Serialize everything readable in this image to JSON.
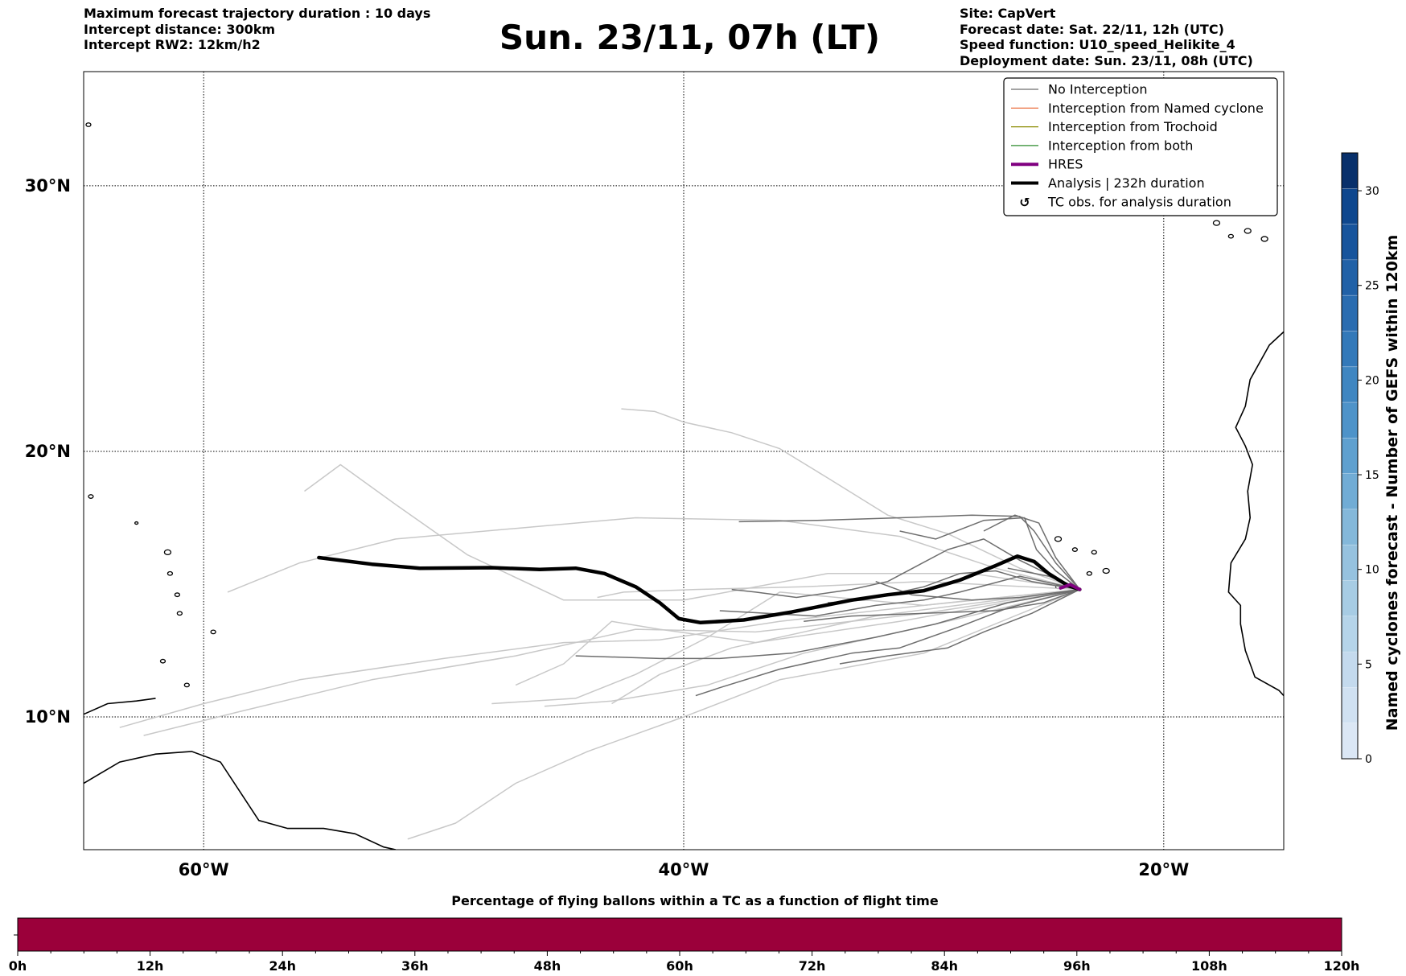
{
  "header_left": {
    "line1": "Maximum forecast trajectory duration : 10 days",
    "line2": "Intercept distance: 300km",
    "line3": "Intercept RW2: 12km/h2"
  },
  "title": "Sun. 23/11, 07h (LT)",
  "header_right": {
    "line1": "Site: CapVert",
    "line2": "Forecast date: Sat. 22/11, 12h (UTC)",
    "line3": "Speed function: U10_speed_Helikite_4",
    "line4": "Deployment date: Sun. 23/11, 08h (UTC)"
  },
  "map": {
    "lon_range": [
      -65,
      -15
    ],
    "lat_range": [
      5,
      34.3
    ],
    "lat_ticks": [
      {
        "value": 30,
        "label": "30°N"
      },
      {
        "value": 20,
        "label": "20°N"
      },
      {
        "value": 10,
        "label": "10°N"
      }
    ],
    "lon_ticks": [
      {
        "value": -60,
        "label": "60°W"
      },
      {
        "value": -40,
        "label": "40°W"
      },
      {
        "value": -20,
        "label": "20°W"
      }
    ],
    "trajectory_colors": {
      "no_interception_light": "#c8c8c8",
      "no_interception_dark": "#6e6e6e",
      "analysis": "#000000",
      "hres": "#800080"
    },
    "analysis_track": [
      [
        -55.2,
        16
      ],
      [
        -53,
        15.75
      ],
      [
        -51,
        15.6
      ],
      [
        -48,
        15.62
      ],
      [
        -46,
        15.55
      ],
      [
        -44.5,
        15.6
      ],
      [
        -43.3,
        15.4
      ],
      [
        -42,
        14.9
      ],
      [
        -41,
        14.3
      ],
      [
        -40.2,
        13.7
      ],
      [
        -39.3,
        13.55
      ],
      [
        -37.5,
        13.65
      ],
      [
        -35.5,
        13.95
      ],
      [
        -33,
        14.4
      ],
      [
        -31.5,
        14.6
      ],
      [
        -30,
        14.75
      ],
      [
        -28.5,
        15.15
      ],
      [
        -27,
        15.7
      ],
      [
        -26.1,
        16.05
      ],
      [
        -25.4,
        15.85
      ],
      [
        -24.8,
        15.4
      ],
      [
        -24,
        14.95
      ],
      [
        -23.5,
        14.8
      ]
    ],
    "hres_track": [
      [
        -24.3,
        14.85
      ],
      [
        -23.9,
        14.98
      ],
      [
        -23.5,
        14.8
      ]
    ],
    "light_tracks": [
      [
        [
          -23.5,
          14.8
        ],
        [
          -26,
          15.6
        ],
        [
          -29,
          16.9
        ],
        [
          -31.5,
          17.6
        ],
        [
          -34,
          19
        ],
        [
          -36,
          20.1
        ],
        [
          -38,
          20.7
        ],
        [
          -40,
          21.1
        ],
        [
          -41.2,
          21.5
        ],
        [
          -42.6,
          21.6
        ]
      ],
      [
        [
          -23.5,
          14.8
        ],
        [
          -27,
          15.6
        ],
        [
          -31,
          16.8
        ],
        [
          -36,
          17.4
        ],
        [
          -42,
          17.5
        ],
        [
          -47,
          17.1
        ],
        [
          -52,
          16.7
        ],
        [
          -56,
          15.8
        ],
        [
          -59,
          14.7
        ]
      ],
      [
        [
          -23.5,
          14.8
        ],
        [
          -28,
          15.4
        ],
        [
          -34,
          15.4
        ],
        [
          -40,
          14.4
        ],
        [
          -45,
          14.4
        ],
        [
          -49,
          16.1
        ],
        [
          -52,
          18
        ],
        [
          -54.3,
          19.5
        ],
        [
          -55.8,
          18.5
        ]
      ],
      [
        [
          -23.5,
          14.8
        ],
        [
          -29,
          14.3
        ],
        [
          -36,
          13.6
        ],
        [
          -41,
          12.9
        ],
        [
          -45,
          12.8
        ],
        [
          -50,
          12.2
        ],
        [
          -56,
          11.4
        ],
        [
          -60,
          10.5
        ],
        [
          -63.5,
          9.6
        ]
      ],
      [
        [
          -23.5,
          14.8
        ],
        [
          -30,
          13.9
        ],
        [
          -37,
          13.2
        ],
        [
          -42,
          13.3
        ],
        [
          -47,
          12.3
        ],
        [
          -53,
          11.4
        ],
        [
          -58.5,
          10.2
        ],
        [
          -62.5,
          9.3
        ]
      ],
      [
        [
          -23.5,
          14.8
        ],
        [
          -30,
          14.2
        ],
        [
          -36,
          14.7
        ],
        [
          -39,
          13
        ],
        [
          -42,
          11.6
        ],
        [
          -44.5,
          10.7
        ],
        [
          -48,
          10.5
        ]
      ],
      [
        [
          -23.5,
          14.8
        ],
        [
          -29,
          13.6
        ],
        [
          -35,
          12.4
        ],
        [
          -39,
          11.2
        ],
        [
          -43,
          10.6
        ],
        [
          -45.8,
          10.4
        ]
      ],
      [
        [
          -23.5,
          14.8
        ],
        [
          -31,
          13.6
        ],
        [
          -37,
          12.8
        ],
        [
          -41,
          13.3
        ],
        [
          -43,
          13.6
        ],
        [
          -45,
          12
        ],
        [
          -47,
          11.2
        ]
      ],
      [
        [
          -23.5,
          14.8
        ],
        [
          -30,
          12.4
        ],
        [
          -36,
          11.4
        ],
        [
          -40,
          10
        ],
        [
          -44,
          8.7
        ],
        [
          -47,
          7.5
        ],
        [
          -49.5,
          6
        ],
        [
          -51.5,
          5.4
        ]
      ],
      [
        [
          -23.5,
          14.8
        ],
        [
          -30,
          15.1
        ],
        [
          -35,
          14.9
        ],
        [
          -39.5,
          14.8
        ],
        [
          -42.5,
          14.7
        ],
        [
          -43.6,
          14.5
        ]
      ],
      [
        [
          -23.5,
          14.8
        ],
        [
          -32,
          13.8
        ],
        [
          -38,
          12.6
        ],
        [
          -41,
          11.6
        ],
        [
          -43,
          10.5
        ]
      ]
    ],
    "dark_tracks": [
      [
        [
          -23.5,
          14.8
        ],
        [
          -24.5,
          15.8
        ],
        [
          -25.4,
          17
        ],
        [
          -26,
          17.55
        ],
        [
          -28,
          17.6
        ],
        [
          -31,
          17.5
        ],
        [
          -34.5,
          17.4
        ],
        [
          -37.7,
          17.35
        ]
      ],
      [
        [
          -23.5,
          14.8
        ],
        [
          -24.5,
          15.5
        ],
        [
          -25.3,
          16.3
        ],
        [
          -25.8,
          17.5
        ],
        [
          -27.5,
          17.4
        ],
        [
          -29.5,
          16.7
        ],
        [
          -31,
          17
        ]
      ],
      [
        [
          -23.5,
          14.8
        ],
        [
          -26,
          15.9
        ],
        [
          -27.5,
          16.7
        ],
        [
          -29,
          16.3
        ],
        [
          -31.5,
          15.1
        ],
        [
          -33,
          14.8
        ],
        [
          -35.3,
          14.5
        ],
        [
          -37,
          14.7
        ],
        [
          -38,
          14.8
        ]
      ],
      [
        [
          -23.5,
          14.8
        ],
        [
          -26,
          15.3
        ],
        [
          -28.5,
          14.7
        ],
        [
          -30,
          14.4
        ],
        [
          -32,
          14.2
        ],
        [
          -34.5,
          13.8
        ],
        [
          -38.5,
          14
        ]
      ],
      [
        [
          -23.5,
          14.8
        ],
        [
          -26.5,
          14.3
        ],
        [
          -29.5,
          13.5
        ],
        [
          -32,
          13
        ],
        [
          -35.5,
          12.4
        ],
        [
          -38.5,
          12.2
        ],
        [
          -41,
          12.2
        ],
        [
          -44.5,
          12.3
        ]
      ],
      [
        [
          -23.5,
          14.8
        ],
        [
          -26.5,
          14.1
        ],
        [
          -28.5,
          13.4
        ],
        [
          -31,
          12.6
        ],
        [
          -33,
          12.4
        ],
        [
          -36,
          11.8
        ],
        [
          -38.5,
          11.1
        ],
        [
          -39.5,
          10.8
        ]
      ],
      [
        [
          -23.5,
          14.8
        ],
        [
          -25.5,
          13.9
        ],
        [
          -27.5,
          13.2
        ],
        [
          -29,
          12.6
        ],
        [
          -31.5,
          12.3
        ],
        [
          -33.5,
          12
        ]
      ],
      [
        [
          -23.5,
          14.8
        ],
        [
          -25,
          14.3
        ],
        [
          -27,
          14
        ],
        [
          -30,
          13.9
        ],
        [
          -33,
          13.8
        ],
        [
          -35,
          13.6
        ]
      ],
      [
        [
          -23.5,
          14.8
        ],
        [
          -25.5,
          15.1
        ],
        [
          -27,
          15.5
        ],
        [
          -28.5,
          15.4
        ],
        [
          -30,
          14.9
        ],
        [
          -32.5,
          14.4
        ],
        [
          -34,
          14.3
        ]
      ],
      [
        [
          -23.5,
          14.8
        ],
        [
          -24.5,
          16
        ],
        [
          -25.2,
          17.3
        ],
        [
          -26.2,
          17.6
        ],
        [
          -27.5,
          17
        ]
      ],
      [
        [
          -23.5,
          14.8
        ],
        [
          -26,
          14.5
        ],
        [
          -28,
          14.4
        ],
        [
          -30.5,
          14.6
        ],
        [
          -32,
          15.1
        ]
      ],
      [
        [
          -23.5,
          14.8
        ],
        [
          -24.8,
          15.3
        ],
        [
          -26.5,
          15.6
        ]
      ]
    ],
    "land": {
      "south_america": [
        [
          -65,
          7.5
        ],
        [
          -63.5,
          8.3
        ],
        [
          -62,
          8.6
        ],
        [
          -60.5,
          8.7
        ],
        [
          -59.3,
          8.3
        ],
        [
          -58.5,
          7.2
        ],
        [
          -57.7,
          6.1
        ],
        [
          -56.5,
          5.8
        ],
        [
          -55,
          5.8
        ],
        [
          -53.7,
          5.6
        ],
        [
          -52.5,
          5.1
        ],
        [
          -52,
          5
        ]
      ],
      "paria": [
        [
          -65,
          10.1
        ],
        [
          -64,
          10.5
        ],
        [
          -62.8,
          10.6
        ],
        [
          -62,
          10.7
        ]
      ],
      "africa": [
        [
          -15,
          24.5
        ],
        [
          -15.6,
          24
        ],
        [
          -16.4,
          22.7
        ],
        [
          -16.6,
          21.7
        ],
        [
          -17,
          20.9
        ],
        [
          -16.6,
          20.2
        ],
        [
          -16.3,
          19.5
        ],
        [
          -16.5,
          18.5
        ],
        [
          -16.4,
          17.5
        ],
        [
          -16.6,
          16.7
        ],
        [
          -17.2,
          15.8
        ],
        [
          -17.3,
          14.7
        ],
        [
          -16.8,
          14.2
        ],
        [
          -16.8,
          13.5
        ],
        [
          -16.6,
          12.5
        ],
        [
          -16.2,
          11.5
        ],
        [
          -15.2,
          11
        ],
        [
          -15,
          10.8
        ]
      ],
      "islands": [
        {
          "lon": -16.5,
          "lat": 28.3,
          "r": 4
        },
        {
          "lon": -15.8,
          "lat": 28.0,
          "r": 4
        },
        {
          "lon": -14.2,
          "lat": 28.2,
          "r": 6
        },
        {
          "lon": -17.8,
          "lat": 28.6,
          "r": 4
        },
        {
          "lon": -17.2,
          "lat": 28.1,
          "r": 3
        },
        {
          "lon": -24.4,
          "lat": 16.7,
          "r": 4
        },
        {
          "lon": -23.7,
          "lat": 16.3,
          "r": 3
        },
        {
          "lon": -22.9,
          "lat": 16.2,
          "r": 3
        },
        {
          "lon": -22.4,
          "lat": 15.5,
          "r": 4
        },
        {
          "lon": -23.1,
          "lat": 15.4,
          "r": 3
        },
        {
          "lon": -24.4,
          "lat": 14.9,
          "r": 3
        },
        {
          "lon": -61.4,
          "lat": 15.4,
          "r": 3
        },
        {
          "lon": -61.1,
          "lat": 14.6,
          "r": 3
        },
        {
          "lon": -61.0,
          "lat": 13.9,
          "r": 3
        },
        {
          "lon": -61.7,
          "lat": 12.1,
          "r": 3
        },
        {
          "lon": -59.6,
          "lat": 13.2,
          "r": 3
        },
        {
          "lon": -61.5,
          "lat": 16.2,
          "r": 4
        },
        {
          "lon": -62.8,
          "lat": 17.3,
          "r": 2
        },
        {
          "lon": -64.7,
          "lat": 18.3,
          "r": 3
        },
        {
          "lon": -60.7,
          "lat": 11.2,
          "r": 3
        },
        {
          "lon": -64.8,
          "lat": 32.3,
          "r": 3
        }
      ]
    }
  },
  "legend": {
    "items": [
      {
        "label": "No Interception",
        "color": "#6e6e6e",
        "width": 1.2
      },
      {
        "label": "Interception from Named cyclone",
        "color": "#e8602c",
        "width": 1.2
      },
      {
        "label": "Interception from Trochoid",
        "color": "#8a8a00",
        "width": 1.2
      },
      {
        "label": "Interception from both",
        "color": "#2e8b2e",
        "width": 1.2
      },
      {
        "label": "HRES",
        "color": "#800080",
        "width": 4
      },
      {
        "label": "Analysis | 232h duration",
        "color": "#000000",
        "width": 4
      }
    ],
    "symbol_item": {
      "symbol": "↺",
      "label": "TC obs. for analysis duration"
    }
  },
  "colorbar": {
    "label": "Named cyclones forecast - Number of GEFS within 120km",
    "min": 0,
    "max": 32,
    "ticks": [
      "0",
      "5",
      "10",
      "15",
      "20",
      "25",
      "30"
    ],
    "colors": [
      "#dbe7f5",
      "#d0e1f2",
      "#c4daee",
      "#b5d4e9",
      "#a7cce4",
      "#96c2df",
      "#84b8da",
      "#71acd5",
      "#5fa0cf",
      "#4e93c9",
      "#3f86c1",
      "#3379b9",
      "#2a6cb0",
      "#2161a7",
      "#17549c",
      "#0e478e",
      "#08306b"
    ]
  },
  "bottom_bar": {
    "title": "Percentage of flying ballons within a TC as a function of flight time",
    "fill_color": "#9b003a",
    "ticks": [
      "0h",
      "12h",
      "24h",
      "36h",
      "48h",
      "60h",
      "72h",
      "84h",
      "96h",
      "108h",
      "120h"
    ]
  }
}
